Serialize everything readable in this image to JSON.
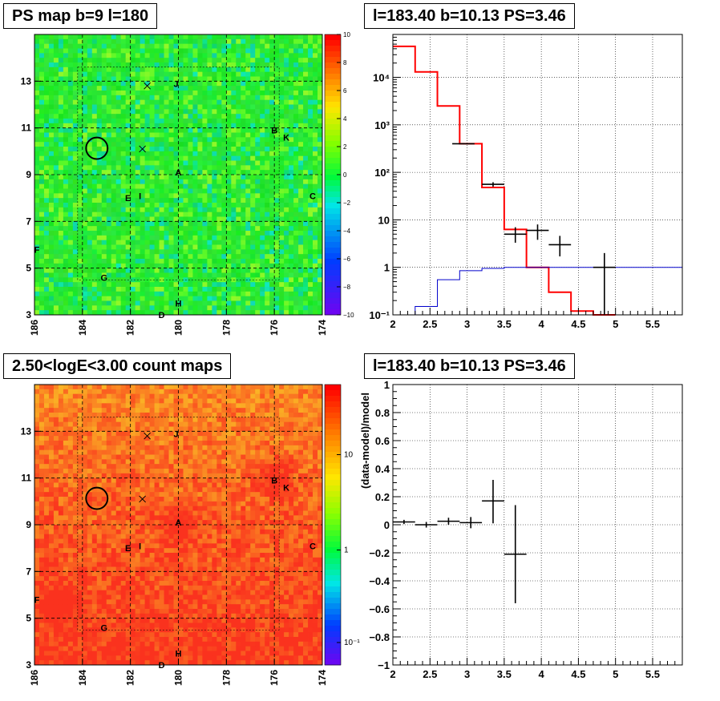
{
  "panels": {
    "ps_map": {
      "title": "PS map b=9 l=180"
    },
    "count_map": {
      "title": "2.50<logE<3.00 count maps"
    },
    "spectrum": {
      "title": "l=183.40 b=10.13 PS=3.46"
    },
    "residual": {
      "title": "l=183.40 b=10.13 PS=3.46"
    }
  },
  "chart_data": [
    {
      "type": "heatmap",
      "title": "PS map b=9 l=180",
      "x_ticks": [
        "186",
        "184",
        "182",
        "180",
        "178",
        "176",
        "174"
      ],
      "y_ticks": [
        "3",
        "5",
        "7",
        "9",
        "11",
        "13"
      ],
      "xlim": [
        186,
        174
      ],
      "ylim": [
        3,
        15
      ],
      "colorbar": {
        "scale": "linear",
        "range": [
          -10,
          10
        ],
        "ticks": [
          "10",
          "8",
          "6",
          "4",
          "2",
          "0",
          "−2",
          "−4",
          "−6",
          "−8",
          "−10"
        ]
      },
      "grid": true,
      "markers": [
        {
          "label": "J",
          "l": 180.1,
          "b": 12.9
        },
        {
          "label": "B",
          "l": 176.0,
          "b": 10.9
        },
        {
          "label": "K",
          "l": 175.5,
          "b": 10.6
        },
        {
          "label": "A",
          "l": 180.0,
          "b": 9.1
        },
        {
          "label": "E",
          "l": 182.1,
          "b": 8.0
        },
        {
          "label": "I",
          "l": 181.6,
          "b": 8.1
        },
        {
          "label": "C",
          "l": 174.4,
          "b": 8.1
        },
        {
          "label": "F",
          "l": 185.9,
          "b": 5.8
        },
        {
          "label": "G",
          "l": 183.1,
          "b": 4.6
        },
        {
          "label": "H",
          "l": 180.0,
          "b": 3.5
        },
        {
          "label": "D",
          "l": 180.7,
          "b": 3.0
        }
      ],
      "crosses": [
        {
          "l": 181.3,
          "b": 12.8
        },
        {
          "l": 181.5,
          "b": 10.1
        }
      ],
      "circle": {
        "l": 183.4,
        "b": 10.13,
        "r": 0.45
      }
    },
    {
      "type": "line",
      "title": "l=183.40 b=10.13 PS=3.46",
      "x_ticks": [
        "2",
        "2.5",
        "3",
        "3.5",
        "4",
        "4.5",
        "5",
        "5.5"
      ],
      "y_ticks": [
        "10⁻¹",
        "1",
        "10",
        "10²",
        "10³",
        "10⁴"
      ],
      "xlim": [
        2.0,
        5.9
      ],
      "ylim": [
        0.1,
        80000
      ],
      "yscale": "log",
      "grid": true,
      "series": [
        {
          "color": "#ff0000",
          "kind": "step",
          "edges": [
            2.0,
            2.3,
            2.6,
            2.9,
            3.2,
            3.5,
            3.8,
            4.1,
            4.4,
            4.7,
            5.0
          ],
          "values": [
            45000,
            13000,
            2500,
            400,
            48,
            6.3,
            1.0,
            0.3,
            0.12,
            0.1
          ]
        },
        {
          "color": "#0000cc",
          "kind": "step",
          "edges": [
            2.0,
            2.3,
            2.6,
            2.9,
            3.2,
            3.5,
            3.8,
            4.1,
            4.4,
            4.7,
            5.0,
            5.9
          ],
          "values": [
            0.1,
            0.15,
            0.55,
            0.85,
            0.95,
            1.0,
            1.0,
            1.0,
            1.0,
            1.0,
            1.0
          ]
        },
        {
          "color": "#000000",
          "kind": "errorbar",
          "points": [
            {
              "x": 2.95,
              "xerr": 0.15,
              "y": 400,
              "ylo": 390,
              "yhi": 410
            },
            {
              "x": 3.35,
              "xerr": 0.15,
              "y": 56,
              "ylo": 50,
              "yhi": 62
            },
            {
              "x": 3.65,
              "xerr": 0.15,
              "y": 5,
              "ylo": 3.3,
              "yhi": 7
            },
            {
              "x": 3.95,
              "xerr": 0.15,
              "y": 6,
              "ylo": 3.8,
              "yhi": 8
            },
            {
              "x": 4.25,
              "xerr": 0.15,
              "y": 3,
              "ylo": 1.7,
              "yhi": 4.6
            },
            {
              "x": 4.85,
              "xerr": 0.15,
              "y": 1,
              "ylo": 0.1,
              "yhi": 2
            }
          ]
        }
      ]
    },
    {
      "type": "heatmap",
      "title": "2.50<logE<3.00 count maps",
      "x_ticks": [
        "186",
        "184",
        "182",
        "180",
        "178",
        "176",
        "174"
      ],
      "y_ticks": [
        "3",
        "5",
        "7",
        "9",
        "11",
        "13"
      ],
      "xlim": [
        186,
        174
      ],
      "ylim": [
        3,
        15
      ],
      "colorbar": {
        "scale": "log",
        "ticks": [
          "10",
          "1",
          "10⁻¹"
        ]
      },
      "grid": true,
      "hotspots": [
        {
          "l": 180.0,
          "b": 9.0
        },
        {
          "l": 176.0,
          "b": 11.0
        },
        {
          "l": 185.0,
          "b": 5.6
        }
      ],
      "markers": [
        {
          "label": "J",
          "l": 180.1,
          "b": 12.9
        },
        {
          "label": "B",
          "l": 176.0,
          "b": 10.9
        },
        {
          "label": "K",
          "l": 175.5,
          "b": 10.6
        },
        {
          "label": "A",
          "l": 180.0,
          "b": 9.1
        },
        {
          "label": "E",
          "l": 182.1,
          "b": 8.0
        },
        {
          "label": "I",
          "l": 181.6,
          "b": 8.1
        },
        {
          "label": "C",
          "l": 174.4,
          "b": 8.1
        },
        {
          "label": "F",
          "l": 185.9,
          "b": 5.8
        },
        {
          "label": "G",
          "l": 183.1,
          "b": 4.6
        },
        {
          "label": "H",
          "l": 180.0,
          "b": 3.5
        },
        {
          "label": "D",
          "l": 180.7,
          "b": 3.0
        }
      ],
      "crosses": [
        {
          "l": 181.3,
          "b": 12.8
        },
        {
          "l": 181.5,
          "b": 10.1
        }
      ],
      "circle": {
        "l": 183.4,
        "b": 10.13,
        "r": 0.45
      }
    },
    {
      "type": "scatter",
      "title": "l=183.40 b=10.13 PS=3.46",
      "ylabel": "(data-model)/model",
      "x_ticks": [
        "2",
        "2.5",
        "3",
        "3.5",
        "4",
        "4.5",
        "5",
        "5.5"
      ],
      "y_ticks": [
        "1",
        "0.8",
        "0.6",
        "0.4",
        "0.2",
        "0",
        "−0.2",
        "−0.4",
        "−0.6",
        "−0.8",
        "−1"
      ],
      "xlim": [
        2.0,
        5.9
      ],
      "ylim": [
        -1,
        1
      ],
      "grid": true,
      "points": [
        {
          "x": 2.15,
          "xerr": 0.15,
          "y": 0.02,
          "ylo": 0.005,
          "yhi": 0.035
        },
        {
          "x": 2.45,
          "xerr": 0.15,
          "y": 0.0,
          "ylo": -0.02,
          "yhi": 0.02
        },
        {
          "x": 2.75,
          "xerr": 0.15,
          "y": 0.025,
          "ylo": 0.0,
          "yhi": 0.05
        },
        {
          "x": 3.05,
          "xerr": 0.15,
          "y": 0.015,
          "ylo": -0.025,
          "yhi": 0.055
        },
        {
          "x": 3.35,
          "xerr": 0.15,
          "y": 0.17,
          "ylo": 0.01,
          "yhi": 0.32
        },
        {
          "x": 3.65,
          "xerr": 0.15,
          "y": -0.21,
          "ylo": -0.56,
          "yhi": 0.14
        }
      ]
    }
  ]
}
